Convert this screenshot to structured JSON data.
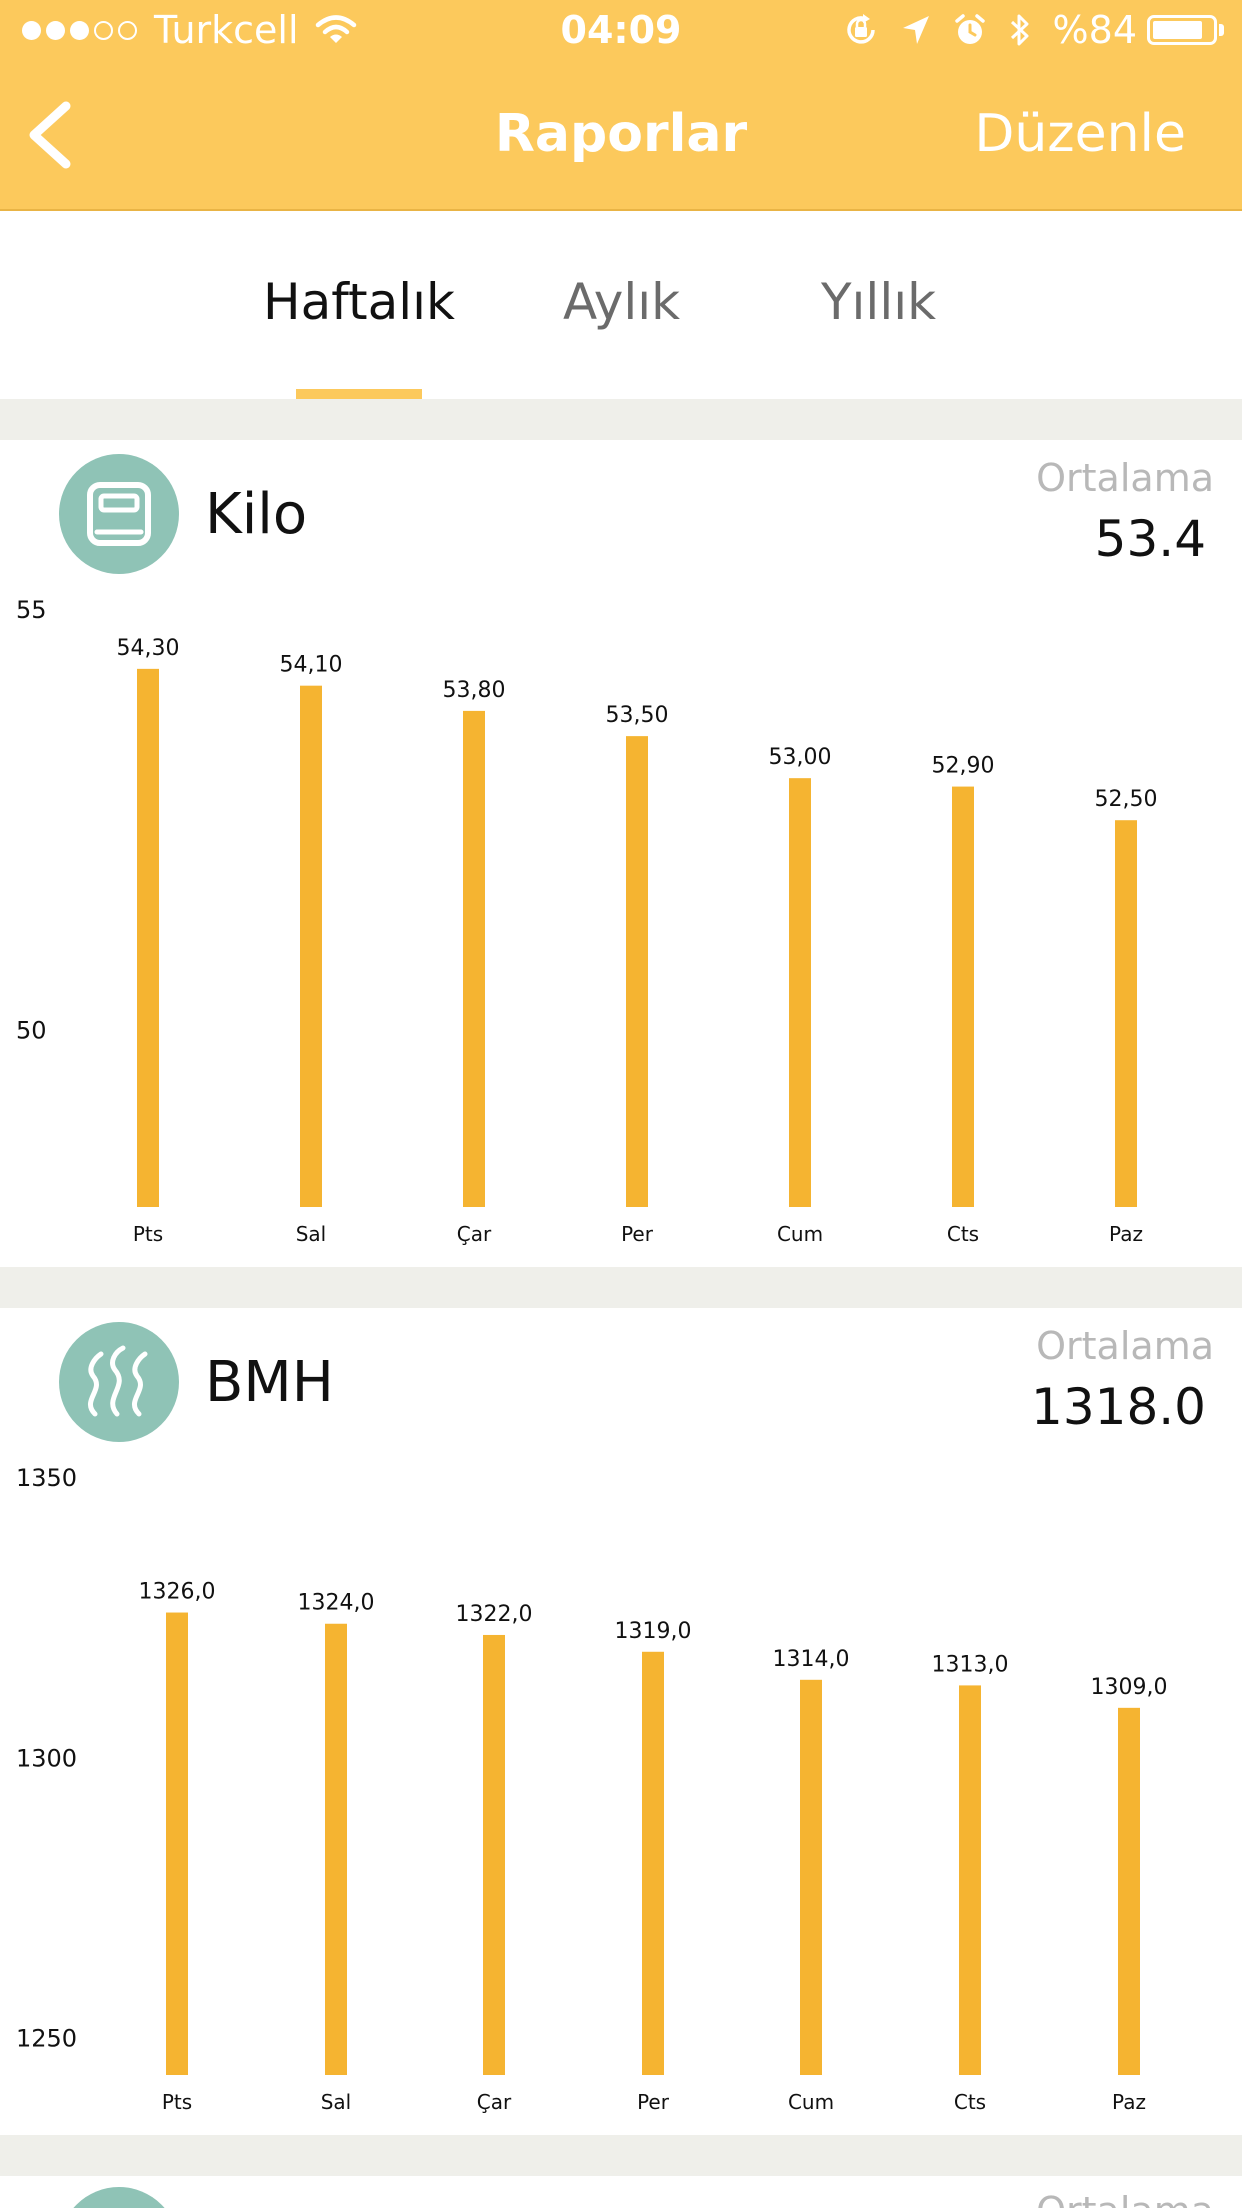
{
  "status_bar": {
    "carrier": "Turkcell",
    "time": "04:09",
    "battery": "%84",
    "battery_level": 0.84
  },
  "nav": {
    "title": "Raporlar",
    "edit_label": "Düzenle"
  },
  "tabs": [
    {
      "label": "Haftalık",
      "active": true
    },
    {
      "label": "Aylık",
      "active": false
    },
    {
      "label": "Yıllık",
      "active": false
    }
  ],
  "colors": {
    "accent": "#fcc95c",
    "bar": "#f5b431",
    "icon_bg": "#8fc3b6"
  },
  "cards": [
    {
      "name": "Kilo",
      "icon": "scale-icon",
      "avg_label": "Ortalama",
      "avg_value": "53.4"
    },
    {
      "name": "BMH",
      "icon": "heat-waves-icon",
      "avg_label": "Ortalama",
      "avg_value": "1318.0"
    },
    {
      "avg_label": "Ortalama"
    }
  ],
  "chart_data": [
    {
      "type": "bar",
      "categories": [
        "Pts",
        "Sal",
        "Çar",
        "Per",
        "Cum",
        "Cts",
        "Paz"
      ],
      "values": [
        54.3,
        54.1,
        53.8,
        53.5,
        53.0,
        52.9,
        52.5
      ],
      "value_labels": [
        "54,30",
        "54,10",
        "53,80",
        "53,50",
        "53,00",
        "52,90",
        "52,50"
      ],
      "y_ticks": [
        55,
        50
      ],
      "ylim": [
        47.9,
        55
      ],
      "grid": false
    },
    {
      "type": "bar",
      "categories": [
        "Pts",
        "Sal",
        "Çar",
        "Per",
        "Cum",
        "Cts",
        "Paz"
      ],
      "values": [
        1326.0,
        1324.0,
        1322.0,
        1319.0,
        1314.0,
        1313.0,
        1309.0
      ],
      "value_labels": [
        "1326,0",
        "1324,0",
        "1322,0",
        "1319,0",
        "1314,0",
        "1313,0",
        "1309,0"
      ],
      "y_ticks": [
        1350,
        1300,
        1250
      ],
      "ylim": [
        1243.5,
        1350
      ],
      "grid": false
    }
  ]
}
